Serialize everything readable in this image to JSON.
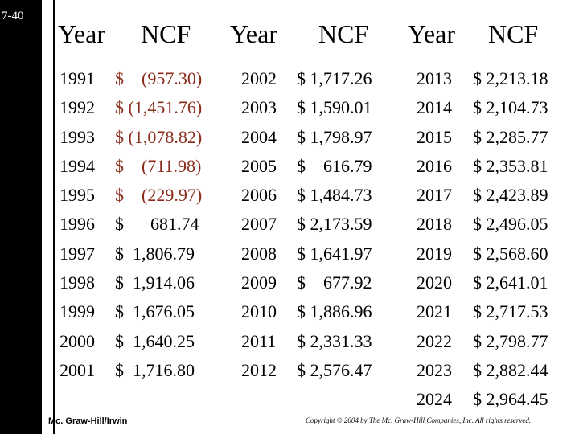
{
  "slide_number": "7-40",
  "headers": [
    "Year",
    "NCF",
    "Year",
    "NCF",
    "Year",
    "NCF"
  ],
  "columns": [
    {
      "rows": [
        {
          "year": "1991",
          "ncf": "$    (957.30)",
          "negative": true
        },
        {
          "year": "1992",
          "ncf": "$ (1,451.76)",
          "negative": true
        },
        {
          "year": "1993",
          "ncf": "$ (1,078.82)",
          "negative": true
        },
        {
          "year": "1994",
          "ncf": "$    (711.98)",
          "negative": true
        },
        {
          "year": "1995",
          "ncf": "$    (229.97)",
          "negative": true
        },
        {
          "year": "1996",
          "ncf": "$      681.74",
          "negative": false
        },
        {
          "year": "1997",
          "ncf": "$  1,806.79",
          "negative": false
        },
        {
          "year": "1998",
          "ncf": "$  1,914.06",
          "negative": false
        },
        {
          "year": "1999",
          "ncf": "$  1,676.05",
          "negative": false
        },
        {
          "year": "2000",
          "ncf": "$  1,640.25",
          "negative": false
        },
        {
          "year": "2001",
          "ncf": "$  1,716.80",
          "negative": false
        }
      ]
    },
    {
      "rows": [
        {
          "year": "2002",
          "ncf": "$ 1,717.26",
          "negative": false
        },
        {
          "year": "2003",
          "ncf": "$ 1,590.01",
          "negative": false
        },
        {
          "year": "2004",
          "ncf": "$ 1,798.97",
          "negative": false
        },
        {
          "year": "2005",
          "ncf": "$    616.79",
          "negative": false
        },
        {
          "year": "2006",
          "ncf": "$ 1,484.73",
          "negative": false
        },
        {
          "year": "2007",
          "ncf": "$ 2,173.59",
          "negative": false
        },
        {
          "year": "2008",
          "ncf": "$ 1,641.97",
          "negative": false
        },
        {
          "year": "2009",
          "ncf": "$    677.92",
          "negative": false
        },
        {
          "year": "2010",
          "ncf": "$ 1,886.96",
          "negative": false
        },
        {
          "year": "2011",
          "ncf": "$ 2,331.33",
          "negative": false
        },
        {
          "year": "2012",
          "ncf": "$ 2,576.47",
          "negative": false
        }
      ]
    },
    {
      "rows": [
        {
          "year": "2013",
          "ncf": "$ 2,213.18",
          "negative": false
        },
        {
          "year": "2014",
          "ncf": "$ 2,104.73",
          "negative": false
        },
        {
          "year": "2015",
          "ncf": "$ 2,285.77",
          "negative": false
        },
        {
          "year": "2016",
          "ncf": "$ 2,353.81",
          "negative": false
        },
        {
          "year": "2017",
          "ncf": "$ 2,423.89",
          "negative": false
        },
        {
          "year": "2018",
          "ncf": "$ 2,496.05",
          "negative": false
        },
        {
          "year": "2019",
          "ncf": "$ 2,568.60",
          "negative": false
        },
        {
          "year": "2020",
          "ncf": "$ 2,641.01",
          "negative": false
        },
        {
          "year": "2021",
          "ncf": "$ 2,717.53",
          "negative": false
        },
        {
          "year": "2022",
          "ncf": "$ 2,798.77",
          "negative": false
        },
        {
          "year": "2023",
          "ncf": "$ 2,882.44",
          "negative": false
        },
        {
          "year": "2024",
          "ncf": "$ 2,964.45",
          "negative": false
        }
      ]
    }
  ],
  "colors": {
    "negative": "#8b2b1b",
    "sidebar": "#000000"
  },
  "footer": {
    "publisher": "Mc. Graw-Hill/Irwin",
    "copyright": "Copyright © 2004 by The Mc. Graw-Hill Companies, Inc. All rights reserved."
  }
}
